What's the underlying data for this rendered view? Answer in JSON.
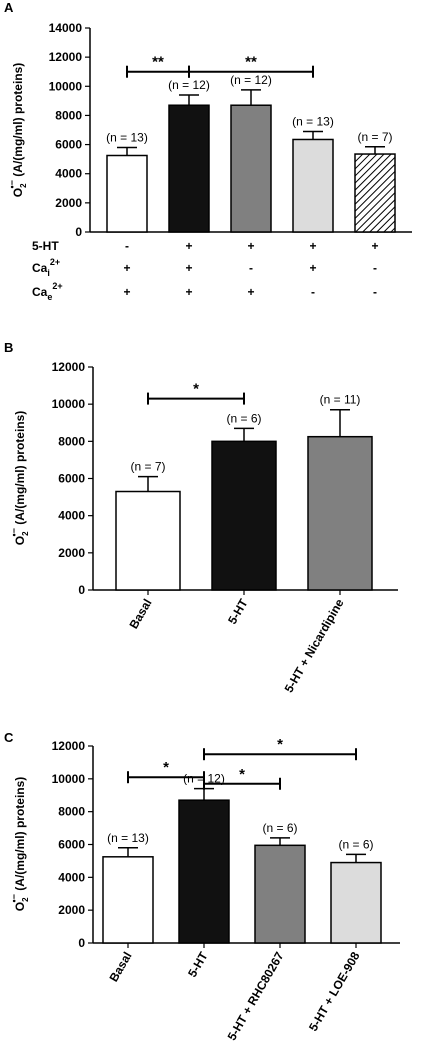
{
  "chart_data": [
    {
      "panel": "A",
      "type": "bar",
      "ylabel_lines": [
        "O",
        "2",
        "•",
        "−",
        " (A/(mg/ml) proteins)"
      ],
      "ylim": [
        0,
        14000
      ],
      "yticks": [
        "0",
        "2000",
        "4000",
        "6000",
        "8000",
        "10000",
        "12000",
        "14000"
      ],
      "bars": [
        {
          "value": 5250,
          "error": 550,
          "n_label": "(n = 13)",
          "fill": "#ffffff",
          "pattern": "none"
        },
        {
          "value": 8700,
          "error": 700,
          "n_label": "(n = 12)",
          "fill": "#111111",
          "pattern": "none"
        },
        {
          "value": 8700,
          "error": 1050,
          "n_label": "(n = 12)",
          "fill": "#808080",
          "pattern": "none"
        },
        {
          "value": 6350,
          "error": 550,
          "n_label": "(n = 13)",
          "fill": "#dcdcdc",
          "pattern": "none"
        },
        {
          "value": 5350,
          "error": 500,
          "n_label": "(n = 7)",
          "fill": "#ffffff",
          "pattern": "hatch"
        }
      ],
      "significance": [
        {
          "from": 0,
          "to": 1,
          "label": "**",
          "y": 11000
        },
        {
          "from": 1,
          "to": 3,
          "label": "**",
          "y": 11000
        }
      ],
      "condition_rows": [
        {
          "label": "5-HT",
          "sup": "",
          "sub": "",
          "values": [
            "-",
            "+",
            "+",
            "+",
            "+"
          ]
        },
        {
          "label": "Ca",
          "sub": "i",
          "sup": "2+",
          "values": [
            "+",
            "+",
            "-",
            "+",
            "-"
          ]
        },
        {
          "label": "Ca",
          "sub": "e",
          "sup": "2+",
          "values": [
            "+",
            "+",
            "+",
            "-",
            "-"
          ]
        }
      ]
    },
    {
      "panel": "B",
      "type": "bar",
      "ylim": [
        0,
        12000
      ],
      "yticks": [
        "0",
        "2000",
        "4000",
        "6000",
        "8000",
        "10000",
        "12000"
      ],
      "categories": [
        "Basal",
        "5-HT",
        "5-HT + Nicardipine"
      ],
      "bars": [
        {
          "value": 5300,
          "error": 800,
          "n_label": "(n = 7)",
          "fill": "#ffffff",
          "pattern": "none"
        },
        {
          "value": 8000,
          "error": 700,
          "n_label": "(n = 6)",
          "fill": "#111111",
          "pattern": "none"
        },
        {
          "value": 8250,
          "error": 1450,
          "n_label": "(n = 11)",
          "fill": "#808080",
          "pattern": "none"
        }
      ],
      "significance": [
        {
          "from": 0,
          "to": 1,
          "label": "*",
          "y": 10300
        }
      ]
    },
    {
      "panel": "C",
      "type": "bar",
      "ylim": [
        0,
        12000
      ],
      "yticks": [
        "0",
        "2000",
        "4000",
        "6000",
        "8000",
        "10000",
        "12000"
      ],
      "categories": [
        "Basal",
        "5-HT",
        "5-HT + RHC80267",
        "5-HT + LOE-908"
      ],
      "bars": [
        {
          "value": 5250,
          "error": 550,
          "n_label": "(n = 13)",
          "fill": "#ffffff",
          "pattern": "none"
        },
        {
          "value": 8700,
          "error": 700,
          "n_label": "(n = 12)",
          "fill": "#111111",
          "pattern": "none"
        },
        {
          "value": 5950,
          "error": 450,
          "n_label": "(n = 6)",
          "fill": "#808080",
          "pattern": "none"
        },
        {
          "value": 4900,
          "error": 500,
          "n_label": "(n = 6)",
          "fill": "#dcdcdc",
          "pattern": "none"
        }
      ],
      "significance": [
        {
          "from": 0,
          "to": 1,
          "label": "*",
          "y": 10100
        },
        {
          "from": 1,
          "to": 2,
          "label": "*",
          "y": 9700
        },
        {
          "from": 1,
          "to": 3,
          "label": "*",
          "y": 11500
        }
      ]
    }
  ]
}
